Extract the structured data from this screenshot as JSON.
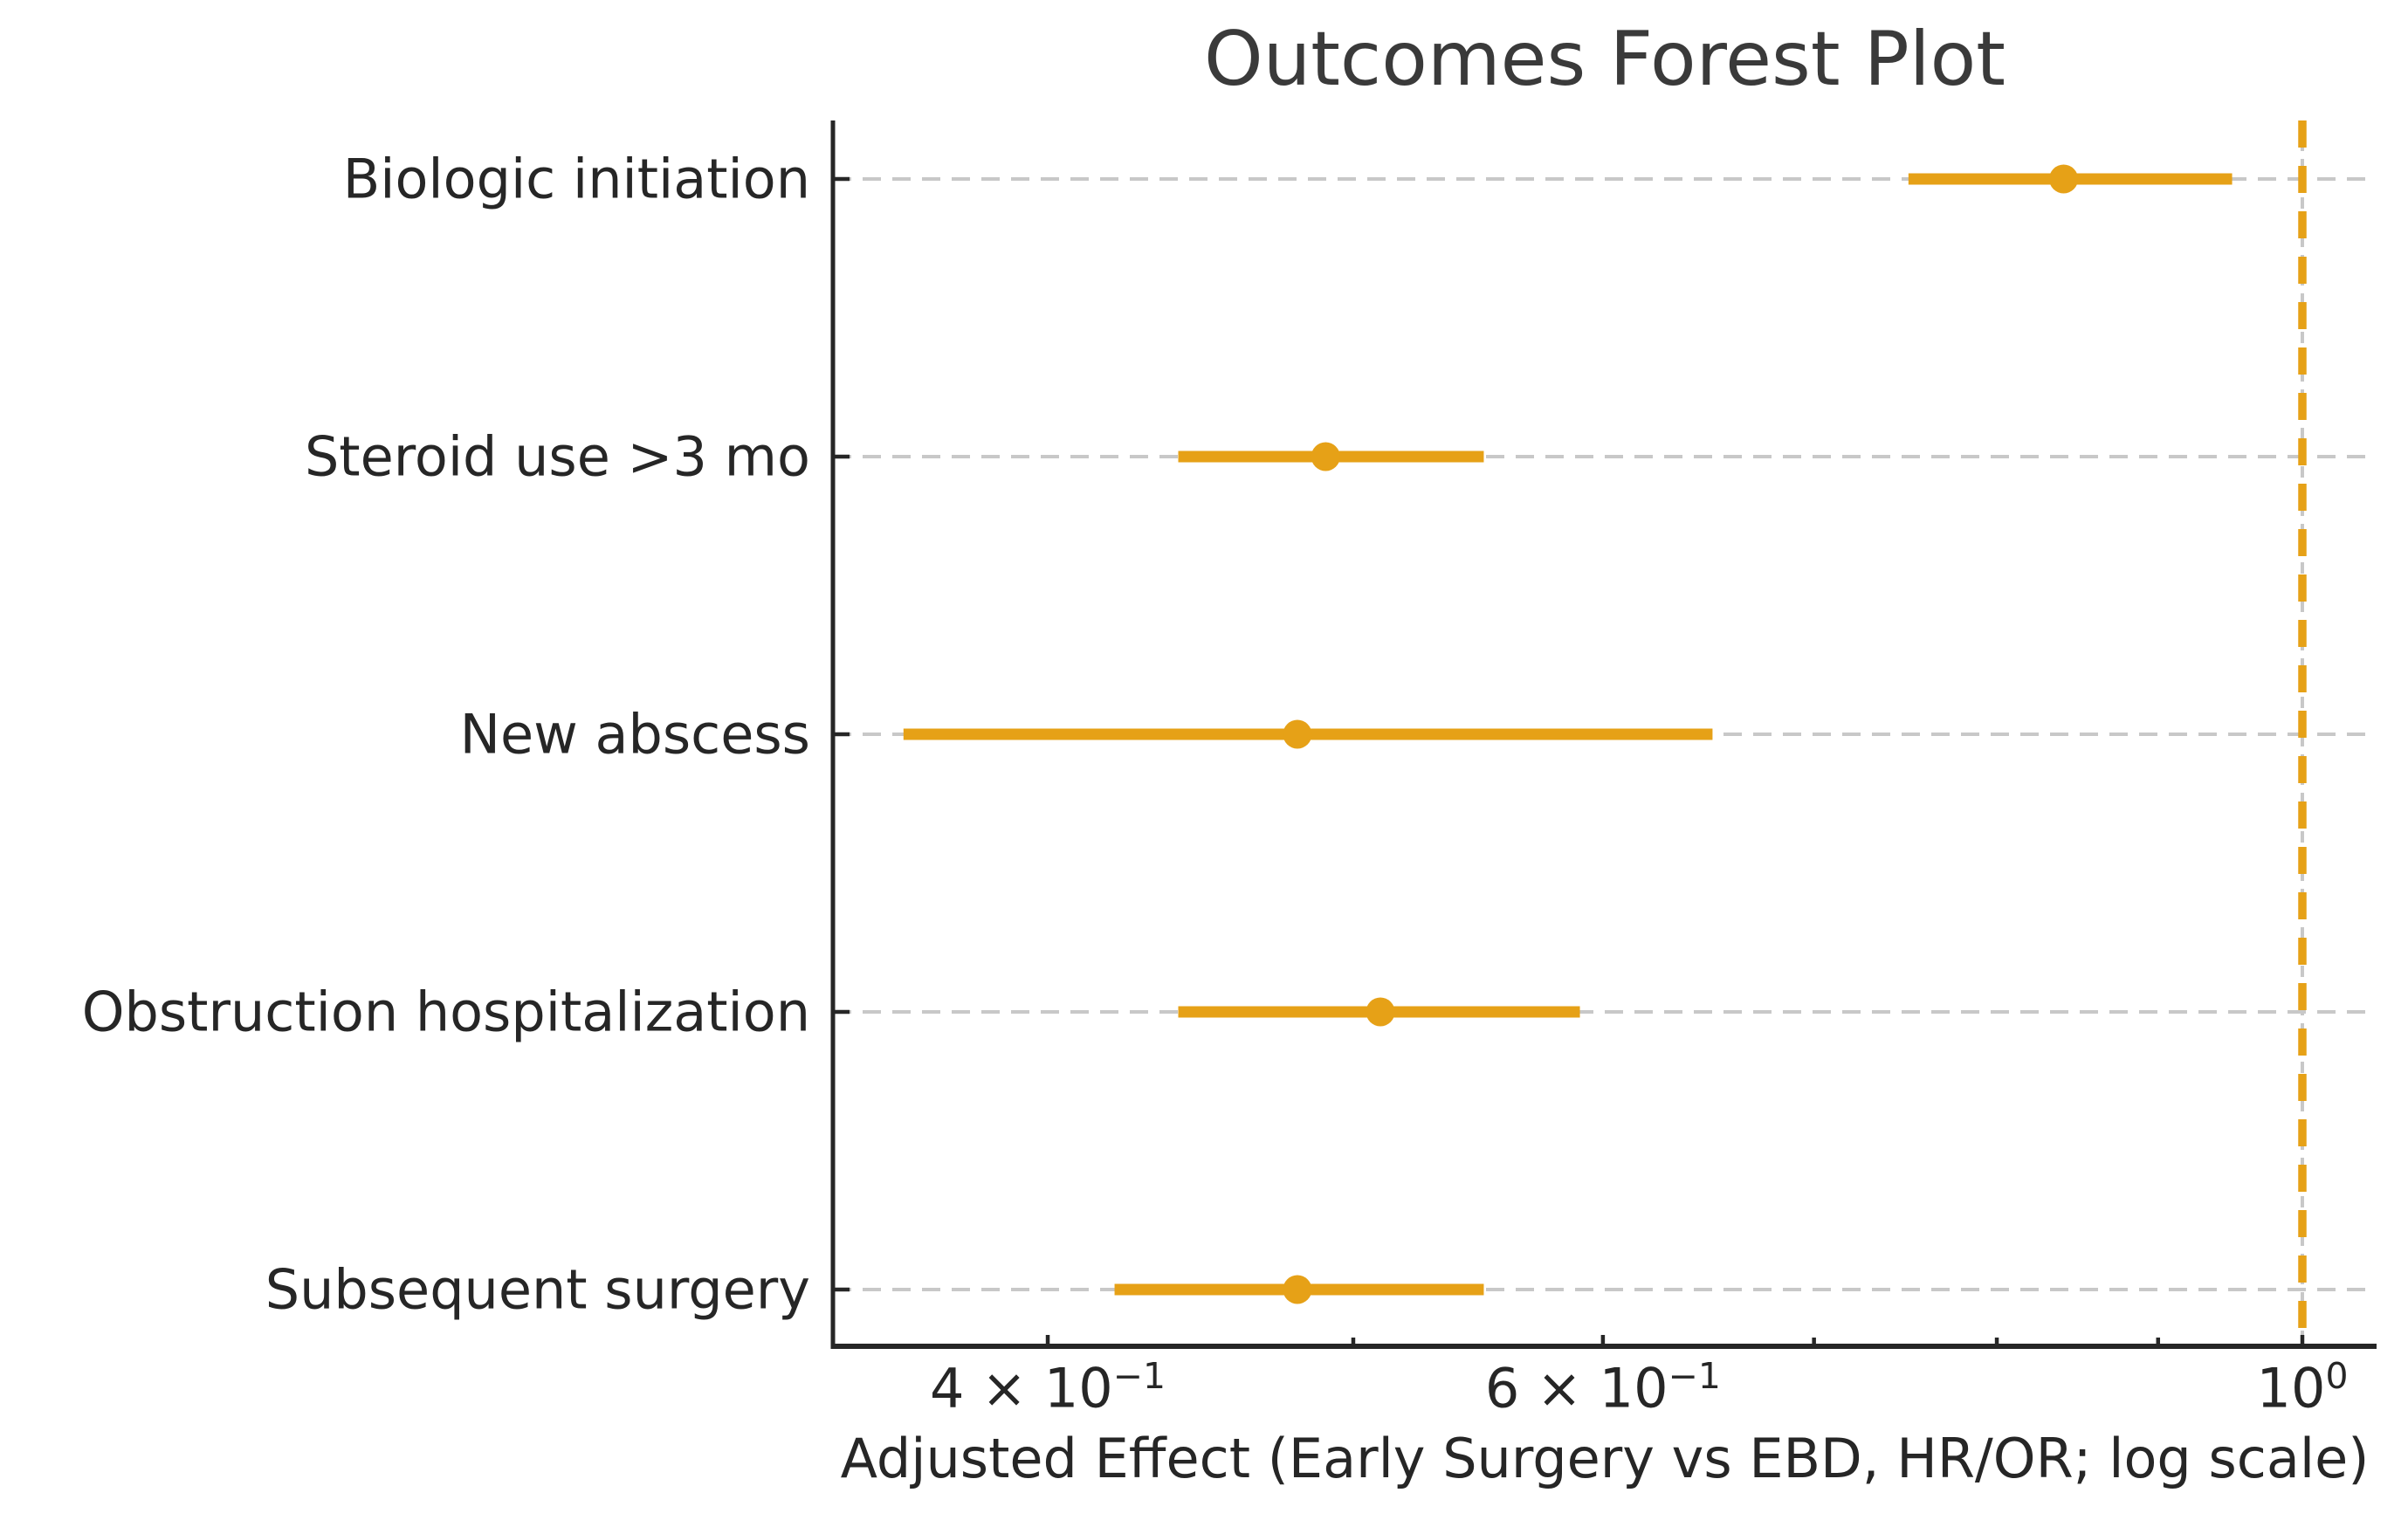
{
  "chart_data": {
    "type": "scatter",
    "variant": "forest-plot-with-error-bars",
    "title": "Outcomes Forest Plot",
    "xlabel": "Adjusted Effect (Early Surgery vs EBD, HR/OR; log scale)",
    "ylabel": "",
    "x_scale": "log",
    "xlim": [
      0.342,
      1.056
    ],
    "grid": "horizontal dashed gridlines on; no vertical gridlines",
    "legend_position": "none",
    "categories": [
      "Biologic initiation",
      "Steroid use >3 mo",
      "New abscess",
      "Obstruction hospitalization",
      "Subsequent surgery"
    ],
    "points": [
      {
        "label": "Biologic initiation",
        "estimate": 0.84,
        "ci_low": 0.75,
        "ci_high": 0.95
      },
      {
        "label": "Steroid use >3 mo",
        "estimate": 0.49,
        "ci_low": 0.44,
        "ci_high": 0.55
      },
      {
        "label": "New abscess",
        "estimate": 0.48,
        "ci_low": 0.36,
        "ci_high": 0.65
      },
      {
        "label": "Obstruction hospitalization",
        "estimate": 0.51,
        "ci_low": 0.44,
        "ci_high": 0.59
      },
      {
        "label": "Subsequent surgery",
        "estimate": 0.48,
        "ci_low": 0.42,
        "ci_high": 0.55
      }
    ],
    "reference_line": {
      "value": 1.0,
      "style": "dashed"
    },
    "x_ticks_labeled": [
      {
        "value": 0.4,
        "mantissa": "4 × 10",
        "exponent": "−1"
      },
      {
        "value": 0.6,
        "mantissa": "6 × 10",
        "exponent": "−1"
      },
      {
        "value": 1.0,
        "mantissa": "10",
        "exponent": "0"
      }
    ],
    "x_ticks_minor": [
      0.5,
      0.7,
      0.8,
      0.9
    ],
    "colors": {
      "accent": "#E6A117",
      "grid": "#C8C8C8",
      "axis": "#262626",
      "title_text": "#3A3A3A"
    }
  }
}
